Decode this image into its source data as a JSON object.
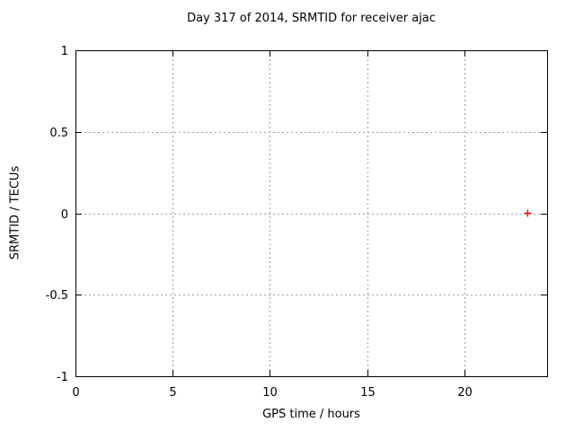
{
  "figure": {
    "background_color": "#ffffff",
    "border_color": "#000000",
    "grid_color": "#9e9e9e",
    "text_color": "#000000"
  },
  "chart_data": {
    "type": "scatter",
    "title": "Day 317 of 2014, SRMTID for receiver ajac",
    "xlabel": "GPS time / hours",
    "ylabel": "SRMTID / TECUs",
    "xlim": [
      0,
      24.25
    ],
    "ylim": [
      -1,
      1
    ],
    "xticks": [
      0,
      5,
      10,
      15,
      20
    ],
    "xtick_labels": [
      "0",
      "5",
      "10",
      "15",
      "20"
    ],
    "yticks": [
      -1,
      -0.5,
      0,
      0.5,
      1
    ],
    "ytick_labels": [
      "-1",
      "-0.5",
      "0",
      "0.5",
      "1"
    ],
    "grid": true,
    "grid_style": "dashed",
    "legend": "none",
    "series": [
      {
        "name": "SRMTID",
        "marker": "plus",
        "color": "#ff0000",
        "points": [
          [
            23.25,
            0
          ]
        ]
      }
    ]
  }
}
